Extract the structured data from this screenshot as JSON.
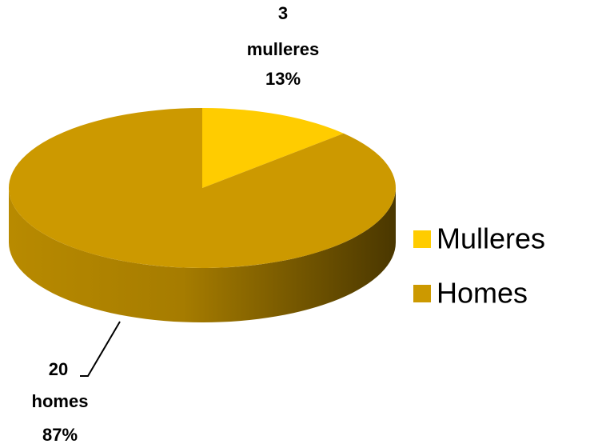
{
  "chart_data": {
    "type": "pie3d",
    "categories": [
      "Mulleres",
      "Homes"
    ],
    "values": [
      3,
      20
    ],
    "label_names": [
      "mulleres",
      "homes"
    ],
    "percent_labels": [
      "13%",
      "87%"
    ],
    "colors": [
      "#ffcc00",
      "#cc9900"
    ],
    "legend": "right"
  }
}
